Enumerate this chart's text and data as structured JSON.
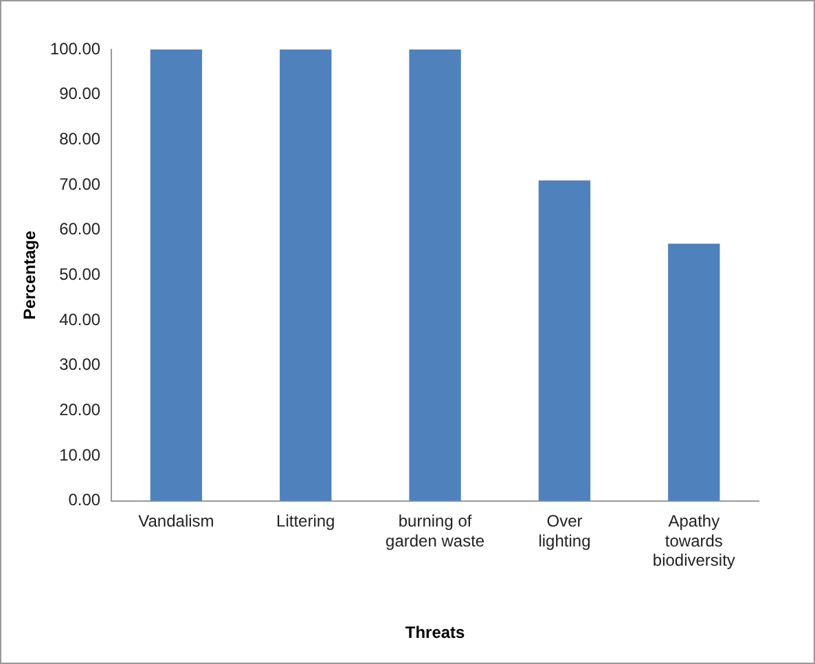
{
  "chart_data": {
    "type": "bar",
    "xlabel": "Threats",
    "ylabel": "Percentage",
    "categories": [
      "Vandalism",
      "Littering",
      "burning of garden waste",
      "Over lighting",
      "Apathy towards biodiversity"
    ],
    "values": [
      100,
      100,
      100,
      71,
      57
    ],
    "color": "#4f81bd",
    "ylim": [
      0,
      100
    ],
    "yticks": [
      {
        "value": 0,
        "label": "0.00"
      },
      {
        "value": 10,
        "label": "10.00"
      },
      {
        "value": 20,
        "label": "20.00"
      },
      {
        "value": 30,
        "label": "30.00"
      },
      {
        "value": 40,
        "label": "40.00"
      },
      {
        "value": 50,
        "label": "50.00"
      },
      {
        "value": 60,
        "label": "60.00"
      },
      {
        "value": 70,
        "label": "70.00"
      },
      {
        "value": 80,
        "label": "80.00"
      },
      {
        "value": 90,
        "label": "90.00"
      },
      {
        "value": 100,
        "label": "100.00"
      }
    ],
    "grid": false,
    "legend": false
  }
}
